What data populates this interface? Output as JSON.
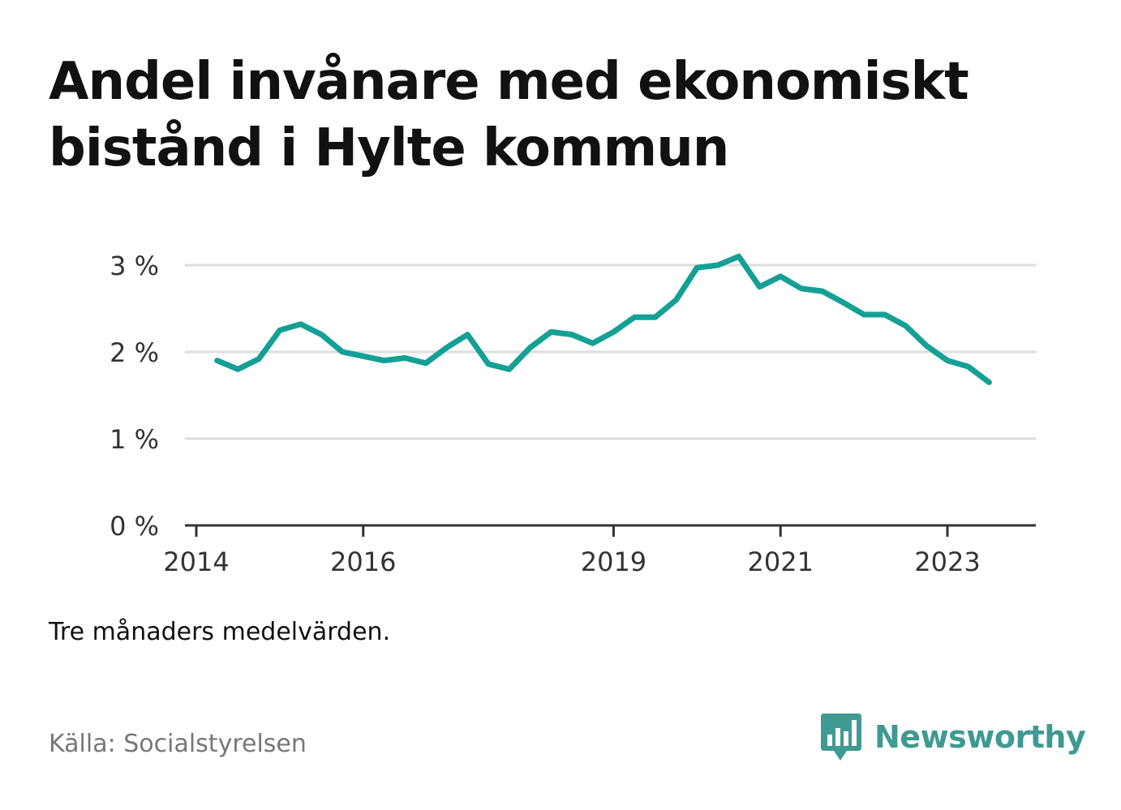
{
  "title": "Andel invånare med ekonomiskt bistånd i Hylte kommun",
  "note": "Tre månaders medelvärden.",
  "source": "Källa: Socialstyrelsen",
  "brand": {
    "name": "Newsworthy",
    "icon": "bar-chart-speech-bubble-icon"
  },
  "colors": {
    "line": "#14a095",
    "brand": "#3e9a92",
    "grid": "#dddddd",
    "axis": "#333333"
  },
  "chart_data": {
    "type": "line",
    "title": "Andel invånare med ekonomiskt bistånd i Hylte kommun",
    "xlabel": "",
    "ylabel": "",
    "ylim": [
      0,
      3.2
    ],
    "xlim": [
      "2014-01",
      "2024-02"
    ],
    "grid": true,
    "y_ticks": [
      {
        "value": 0,
        "label": "0 %"
      },
      {
        "value": 1,
        "label": "1 %"
      },
      {
        "value": 2,
        "label": "2 %"
      },
      {
        "value": 3,
        "label": "3 %"
      }
    ],
    "x_ticks": [
      {
        "value": "2014-01",
        "label": "2014"
      },
      {
        "value": "2016-01",
        "label": "2016"
      },
      {
        "value": "2019-01",
        "label": "2019"
      },
      {
        "value": "2021-01",
        "label": "2021"
      },
      {
        "value": "2023-01",
        "label": "2023"
      }
    ],
    "series": [
      {
        "x": [
          "2014-04",
          "2014-07",
          "2014-10",
          "2015-01",
          "2015-04",
          "2015-07",
          "2015-10",
          "2016-01",
          "2016-04",
          "2016-07",
          "2016-10",
          "2017-01",
          "2017-04",
          "2017-07",
          "2017-10",
          "2018-01",
          "2018-04",
          "2018-07",
          "2018-10",
          "2019-01",
          "2019-04",
          "2019-07",
          "2019-10",
          "2020-01",
          "2020-04",
          "2020-07",
          "2020-10",
          "2021-01",
          "2021-04",
          "2021-07",
          "2021-10",
          "2022-01",
          "2022-04",
          "2022-07",
          "2022-10",
          "2023-01",
          "2023-04",
          "2023-07"
        ],
        "values": [
          1.9,
          1.8,
          1.92,
          2.25,
          2.32,
          2.2,
          2.0,
          1.95,
          1.9,
          1.93,
          1.87,
          2.05,
          2.2,
          1.86,
          1.8,
          2.05,
          2.23,
          2.2,
          2.1,
          2.23,
          2.4,
          2.4,
          2.6,
          2.97,
          3.0,
          3.1,
          2.75,
          2.87,
          2.73,
          2.7,
          2.57,
          2.43,
          2.43,
          2.3,
          2.07,
          1.9,
          1.83,
          1.65
        ]
      }
    ]
  }
}
